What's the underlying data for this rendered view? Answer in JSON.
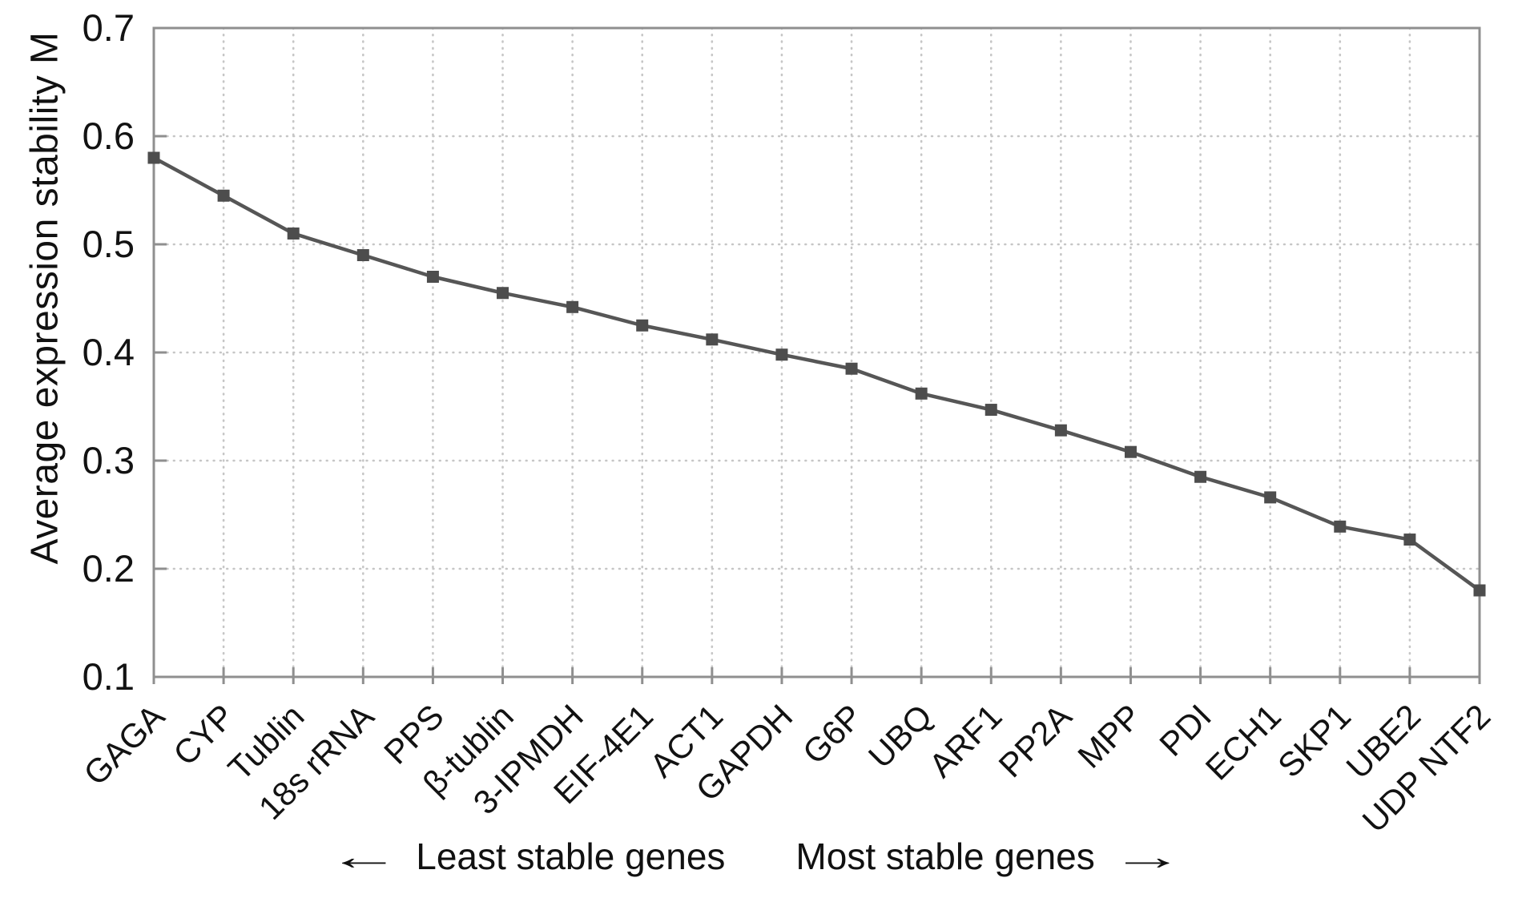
{
  "chart_data": {
    "type": "line",
    "title": "",
    "ylabel": "Average expression stability M",
    "xlabel": "",
    "categories": [
      "GAGA",
      "CYP",
      "Tublin",
      "18s rRNA",
      "PPS",
      "β-tublin",
      "3-IPMDH",
      "EIF-4E1",
      "ACT1",
      "GAPDH",
      "G6P",
      "UBQ",
      "ARF1",
      "PP2A",
      "MPP",
      "PDI",
      "ECH1",
      "SKP1",
      "UBE2",
      "UDP NTF2"
    ],
    "values": [
      0.58,
      0.545,
      0.51,
      0.49,
      0.47,
      0.455,
      0.442,
      0.425,
      0.412,
      0.398,
      0.385,
      0.362,
      0.347,
      0.328,
      0.308,
      0.285,
      0.266,
      0.239,
      0.227,
      0.18
    ],
    "ylim": [
      0.1,
      0.7
    ],
    "yticks": [
      0.7,
      0.6,
      0.5,
      0.4,
      0.3,
      0.2,
      0.1
    ],
    "ytick_labels": [
      "0.7",
      "0.6",
      "0.5",
      "0.4",
      "0.3",
      "0.2",
      "0.1"
    ],
    "grid": "dotted, horizontal at each 0.1 and vertical at each gene",
    "legend_position": "none",
    "marker": "filled-square",
    "caption": {
      "left_arrow": "←",
      "left_text": "Least stable genes",
      "right_text": "Most stable genes",
      "right_arrow": "→"
    },
    "colors": {
      "series": "#565656",
      "marker": "#4d4d4d",
      "frame": "#8f8f8f",
      "grid": "#c6c6c6",
      "text": "#121212"
    }
  }
}
